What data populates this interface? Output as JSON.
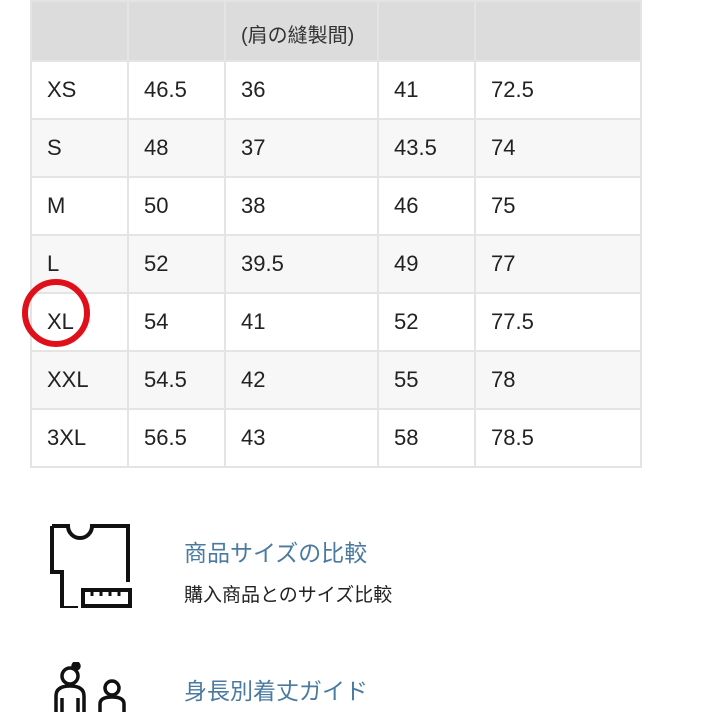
{
  "table": {
    "header": [
      "",
      "",
      "(肩の縫製間)",
      "",
      ""
    ],
    "rows": [
      [
        "XS",
        "46.5",
        "36",
        "41",
        "72.5"
      ],
      [
        "S",
        "48",
        "37",
        "43.5",
        "74"
      ],
      [
        "M",
        "50",
        "38",
        "46",
        "75"
      ],
      [
        "L",
        "52",
        "39.5",
        "49",
        "77"
      ],
      [
        "XL",
        "54",
        "41",
        "52",
        "77.5"
      ],
      [
        "XXL",
        "54.5",
        "42",
        "55",
        "78"
      ],
      [
        "3XL",
        "56.5",
        "43",
        "58",
        "78.5"
      ]
    ],
    "highlighted_size": "XL",
    "highlight_color": "#e0101a"
  },
  "features": [
    {
      "icon": "tshirt-ruler-icon",
      "title": "商品サイズの比較",
      "subtitle": "購入商品とのサイズ比較"
    },
    {
      "icon": "people-height-icon",
      "title": "身長別着丈ガイド"
    }
  ]
}
